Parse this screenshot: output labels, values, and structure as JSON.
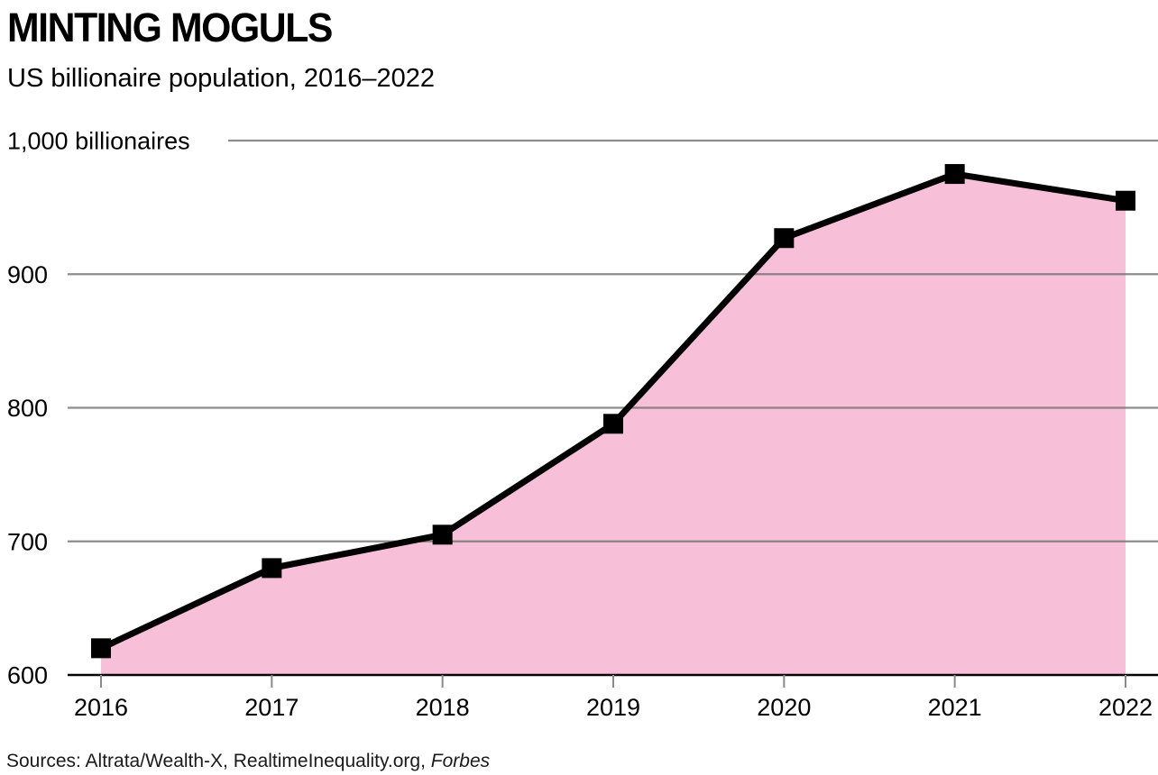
{
  "chart_data": {
    "type": "area",
    "title": "MINTING MOGULS",
    "subtitle": "US billionaire population, 2016–2022",
    "x": [
      2016,
      2017,
      2018,
      2019,
      2020,
      2021,
      2022
    ],
    "values": [
      620,
      680,
      705,
      788,
      927,
      975,
      955
    ],
    "series_name": "US billionaire population",
    "ylim": [
      600,
      1000
    ],
    "xlabel": "",
    "ylabel": "billionaires",
    "y_ticks": [
      {
        "value": 600,
        "label": "600"
      },
      {
        "value": 700,
        "label": "700"
      },
      {
        "value": 800,
        "label": "800"
      },
      {
        "value": 900,
        "label": "900"
      },
      {
        "value": 1000,
        "label": "1,000 billionaires"
      }
    ],
    "grid": true,
    "legend": "none",
    "area_color": "#f8c0d8",
    "line_color": "#000000",
    "grid_color": "#6f6f6f",
    "tick_color": "#8a8a8a",
    "sources_prefix": "Sources: Altrata/Wealth-X, RealtimeInequality.org, ",
    "sources_italic": "Forbes"
  }
}
